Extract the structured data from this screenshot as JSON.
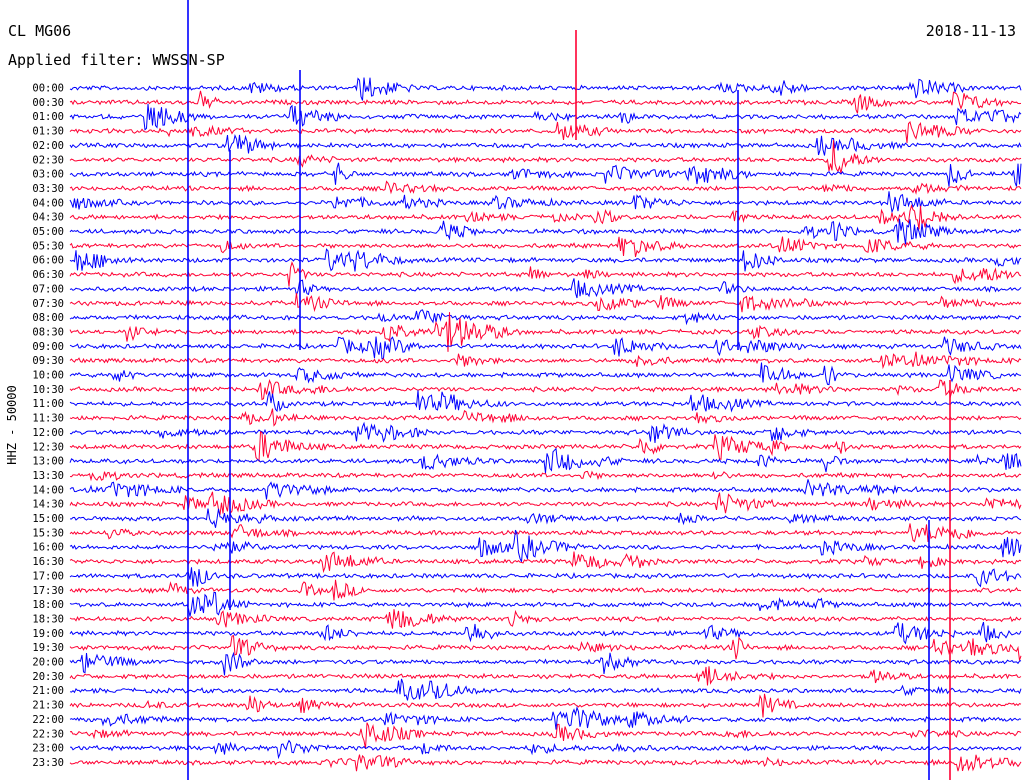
{
  "header": {
    "station": "CL MG06",
    "filter": "Applied filter: WWSSN-SP",
    "date": "2018-11-13"
  },
  "axis": {
    "ylabel": "HHZ - 50000"
  },
  "chart_data": {
    "type": "line",
    "title": "CL MG06",
    "subtitle": "Applied filter: WWSSN-SP",
    "ylabel": "HHZ - 50000",
    "row_labels": [
      "00:00",
      "00:30",
      "01:00",
      "01:30",
      "02:00",
      "02:30",
      "03:00",
      "03:30",
      "04:00",
      "04:30",
      "05:00",
      "05:30",
      "06:00",
      "06:30",
      "07:00",
      "07:30",
      "08:00",
      "08:30",
      "09:00",
      "09:30",
      "10:00",
      "10:30",
      "11:00",
      "11:30",
      "12:00",
      "12:30",
      "13:00",
      "13:30",
      "14:00",
      "14:30",
      "15:00",
      "15:30",
      "16:00",
      "16:30",
      "17:00",
      "17:30",
      "18:00",
      "18:30",
      "19:00",
      "19:30",
      "20:00",
      "20:30",
      "21:00",
      "21:30",
      "22:00",
      "22:30",
      "23:00",
      "23:30"
    ],
    "colors": [
      "#0000ff",
      "#ff0033"
    ],
    "grid": false,
    "legend": "none"
  }
}
